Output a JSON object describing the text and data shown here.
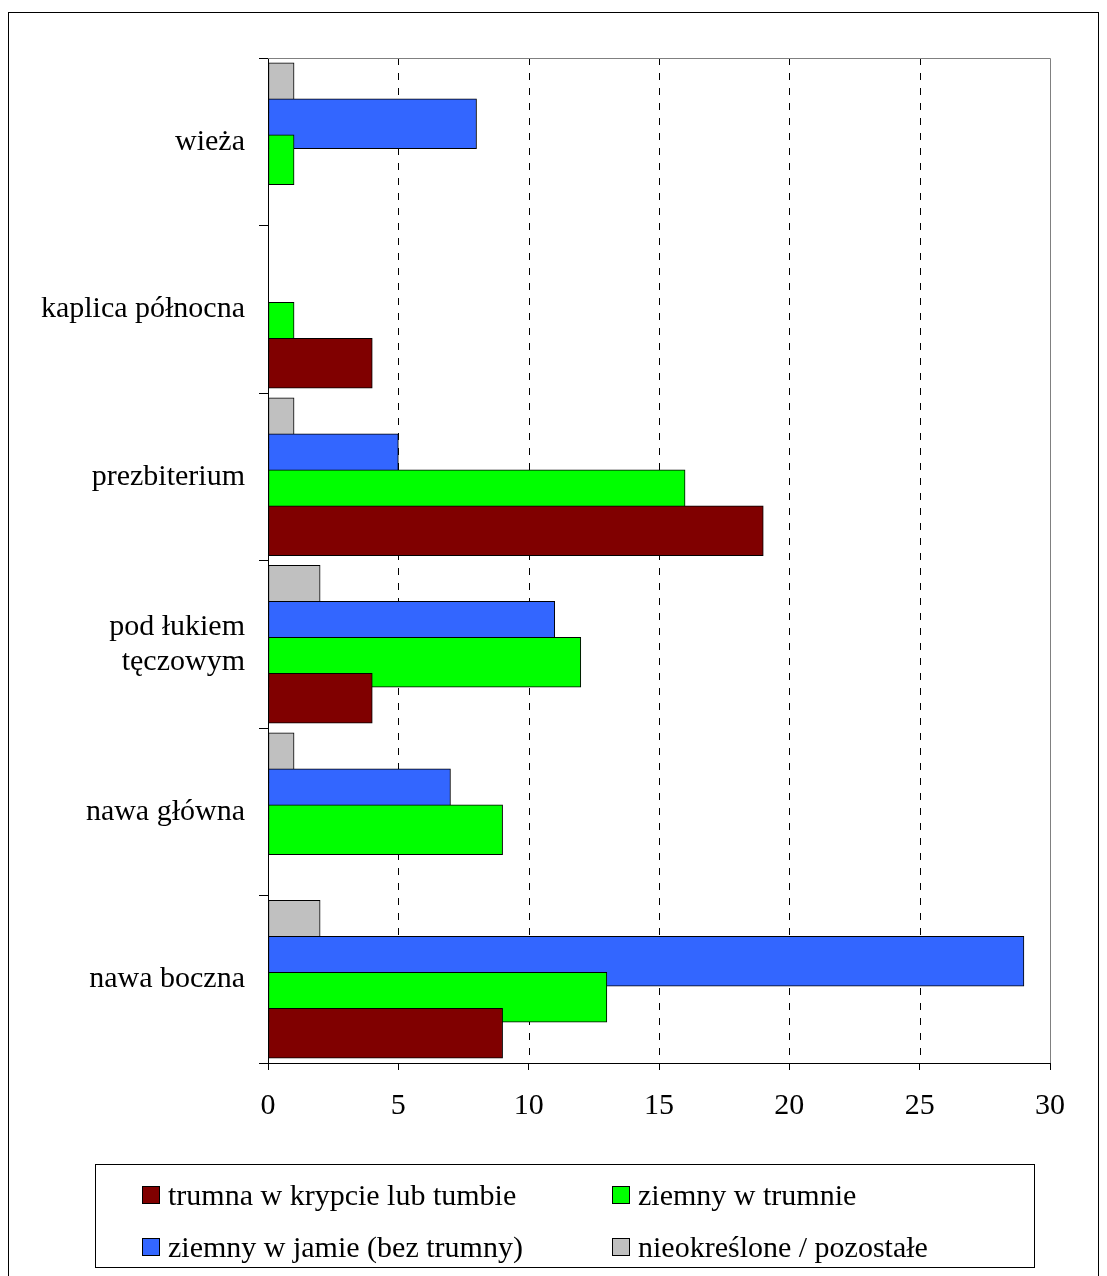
{
  "chart_data": {
    "type": "bar",
    "orientation": "horizontal",
    "categories": [
      "wieża",
      "kaplica północna",
      "prezbiterium",
      "pod łukiem tęczowym",
      "nawa główna",
      "nawa boczna"
    ],
    "series": [
      {
        "name": "trumna w krypcie lub tumbie",
        "color": "#800000",
        "values": [
          0,
          4,
          19,
          4,
          0,
          9
        ]
      },
      {
        "name": "ziemny w trumnie",
        "color": "#00ff00",
        "values": [
          1,
          1,
          16,
          12,
          9,
          13
        ]
      },
      {
        "name": "ziemny w jamie (bez trumny)",
        "color": "#3366ff",
        "values": [
          8,
          0,
          5,
          11,
          7,
          29
        ]
      },
      {
        "name": "nieokreślone / pozostałe",
        "color": "#c0c0c0",
        "values": [
          1,
          0,
          1,
          2,
          1,
          2
        ]
      }
    ],
    "xlim": [
      0,
      30
    ],
    "xticks": [
      0,
      5,
      10,
      15,
      20,
      25,
      30
    ],
    "grid": "x",
    "legend": "bottom"
  }
}
